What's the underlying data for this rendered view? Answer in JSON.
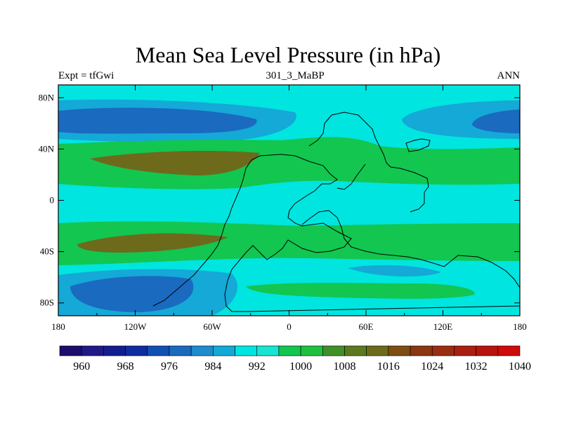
{
  "title": "Mean Sea Level Pressure (in hPa)",
  "left_label": "Expt = tfGwi",
  "center_label": "301_3_MaBP",
  "right_label": "ANN",
  "lat_ticks": [
    "80N",
    "40N",
    "0",
    "40S",
    "80S"
  ],
  "lon_ticks": [
    "180",
    "120W",
    "60W",
    "0",
    "60E",
    "120E",
    "180"
  ],
  "colorbar": {
    "labels": [
      "960",
      "968",
      "976",
      "984",
      "992",
      "1000",
      "1008",
      "1016",
      "1024",
      "1032",
      "1040"
    ],
    "colors": [
      "#1a0d6b",
      "#1f1a86",
      "#141d8e",
      "#0f2ca0",
      "#1150b3",
      "#1a6ac0",
      "#1d8bcc",
      "#14a9d6",
      "#00e5e0",
      "#18e4d2",
      "#12c650",
      "#1fc03f",
      "#3f8f2a",
      "#5b7a1f",
      "#6d6a1c",
      "#7d4d14",
      "#8a3812",
      "#9a2d12",
      "#a82010",
      "#b8140f",
      "#cf0a0a"
    ]
  },
  "palette": {
    "ocean_base": "#00e5e0",
    "low_mid": "#14a9d6",
    "low_deep": "#1a6ac0",
    "high_mid": "#12c650",
    "high_deep": "#6d6a1c"
  }
}
